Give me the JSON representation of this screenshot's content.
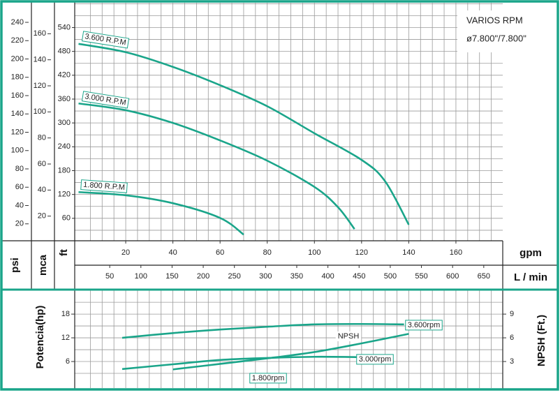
{
  "chart_data": [
    {
      "type": "line",
      "title": "VARIOS RPM",
      "subtitle": "ø7.800\"/7.800\"",
      "x_label": "gpm",
      "x2_label": "L / min",
      "xlim": [
        0,
        180
      ],
      "xticks": [
        20,
        40,
        60,
        80,
        100,
        120,
        140,
        160
      ],
      "x2lim": [
        0,
        681
      ],
      "x2ticks": [
        50,
        100,
        150,
        200,
        250,
        300,
        350,
        400,
        450,
        500,
        550,
        600,
        650
      ],
      "y_label": "ft",
      "ylim": [
        0,
        590
      ],
      "yticks": [
        60,
        120,
        180,
        240,
        300,
        360,
        420,
        480,
        540
      ],
      "y2_label": "mca",
      "y2lim": [
        0,
        180
      ],
      "y2ticks": [
        20,
        40,
        60,
        80,
        100,
        120,
        140,
        160
      ],
      "y3_label": "psi",
      "y3lim": [
        0,
        256
      ],
      "y3ticks": [
        20,
        40,
        60,
        80,
        100,
        120,
        140,
        160,
        180,
        200,
        220,
        240
      ],
      "grid": true,
      "grid_x_step": 5,
      "grid_y_step": 30,
      "series": [
        {
          "name": "3.600 R.P.M",
          "color": "#1aa58a",
          "x": [
            0,
            20,
            40,
            60,
            80,
            100,
            120,
            130,
            140
          ],
          "values": [
            499,
            478,
            441,
            395,
            342,
            274,
            207,
            153,
            44
          ]
        },
        {
          "name": "3.000 R.P.M",
          "color": "#1aa58a",
          "x": [
            0,
            20,
            40,
            60,
            80,
            100,
            110,
            117
          ],
          "values": [
            349,
            332,
            300,
            256,
            205,
            139,
            88,
            33
          ]
        },
        {
          "name": "1.800 R.P.M",
          "color": "#1aa58a",
          "x": [
            0,
            20,
            40,
            60,
            70
          ],
          "values": [
            126,
            118,
            98,
            61,
            19
          ]
        }
      ]
    },
    {
      "type": "line",
      "y_label": "Potencia(hp)",
      "ylim": [
        0,
        24.2
      ],
      "yticks": [
        6,
        12,
        18
      ],
      "y2_label": "NPSH (Ft.)",
      "y2lim": [
        0,
        12.1
      ],
      "y2ticks": [
        3,
        6,
        9
      ],
      "xlim": [
        0,
        180
      ],
      "grid": true,
      "grid_x_step": 5,
      "grid_y_step": 3,
      "annotation": "1.800rpm",
      "series": [
        {
          "name": "3.600rpm",
          "color": "#1aa58a",
          "x": [
            18.5,
            40,
            60,
            80,
            100,
            120,
            138
          ],
          "values": [
            12,
            13.2,
            14.1,
            14.8,
            15.4,
            15.5,
            15.4
          ]
        },
        {
          "name": "3.000rpm",
          "color": "#1aa58a",
          "x": [
            18.5,
            40,
            60,
            80,
            100,
            120,
            130
          ],
          "values": [
            4.1,
            5.3,
            6.4,
            6.9,
            7.2,
            7.1,
            6.9
          ]
        },
        {
          "name": "NPSH",
          "color": "#1aa58a",
          "axis": "y2",
          "x": [
            40,
            60,
            80,
            100,
            120,
            140
          ],
          "values": [
            2.0,
            2.7,
            3.4,
            4.2,
            5.3,
            6.5
          ]
        }
      ]
    }
  ]
}
